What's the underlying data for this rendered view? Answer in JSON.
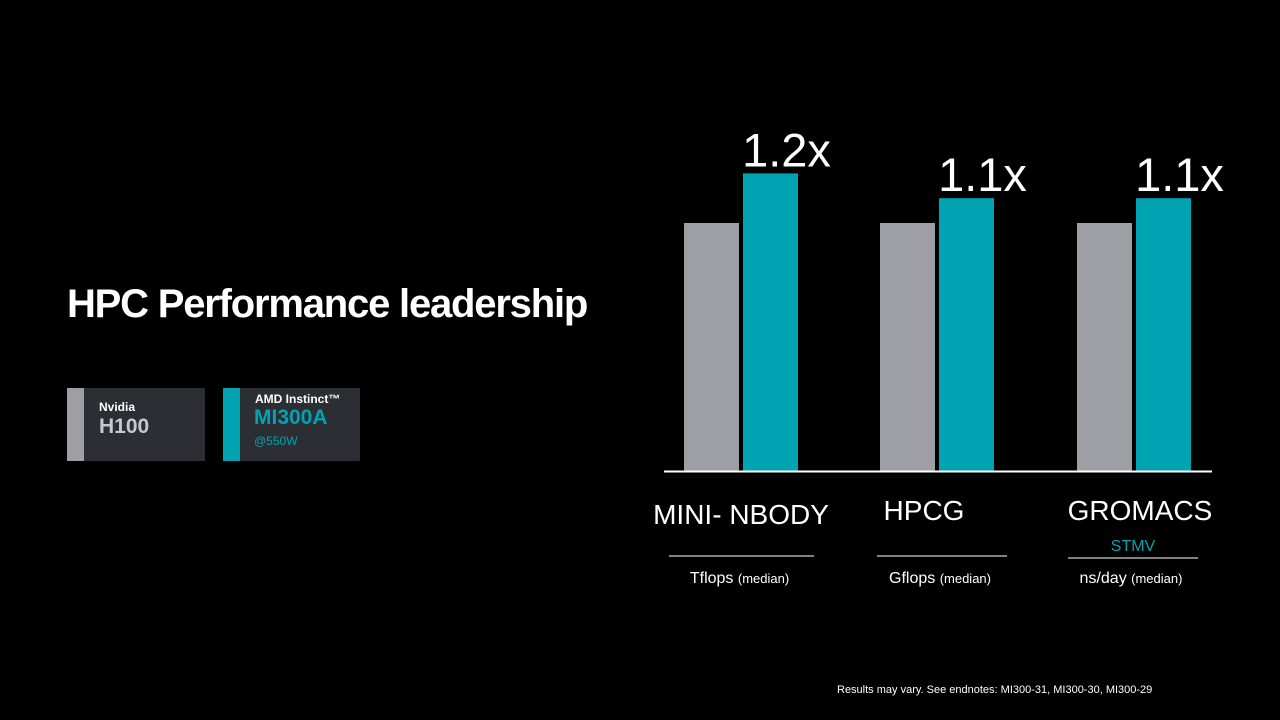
{
  "slide": {
    "title": "HPC Performance leadership",
    "endnote": "Results may vary. See endnotes: MI300-31, MI300-30, MI300-29"
  },
  "legend": {
    "nvidia": {
      "brand": "Nvidia",
      "model": "H100",
      "color": "#9d9fa4"
    },
    "amd": {
      "brand": "AMD Instinct™",
      "model": "MI300A",
      "power": "@550W",
      "color": "#00a3b2"
    }
  },
  "colors": {
    "background": "#000000",
    "nvidia_bar": "#9d9fa4",
    "amd_bar": "#00a3b2",
    "axis": "#ffffff",
    "text": "#ffffff"
  },
  "chart_data": {
    "type": "bar",
    "title": "",
    "xlabel": "",
    "ylabel": "",
    "ylim": [
      0,
      1.2
    ],
    "grid": false,
    "legend_placement": "left",
    "categories": [
      "MINI- NBODY",
      "HPCG",
      "GROMACS"
    ],
    "category_sublabels": [
      "",
      "",
      "STMV"
    ],
    "units": [
      {
        "main": "Tflops",
        "note": "(median)"
      },
      {
        "main": "Gflops",
        "note": "(median)"
      },
      {
        "main": "ns/day",
        "note": "(median)"
      }
    ],
    "series": [
      {
        "name": "Nvidia H100",
        "values": [
          1.0,
          1.0,
          1.0
        ]
      },
      {
        "name": "AMD Instinct™ MI300A @550W",
        "values": [
          1.2,
          1.1,
          1.1
        ]
      }
    ],
    "data_labels": [
      "1.2x",
      "1.1x",
      "1.1x"
    ]
  }
}
